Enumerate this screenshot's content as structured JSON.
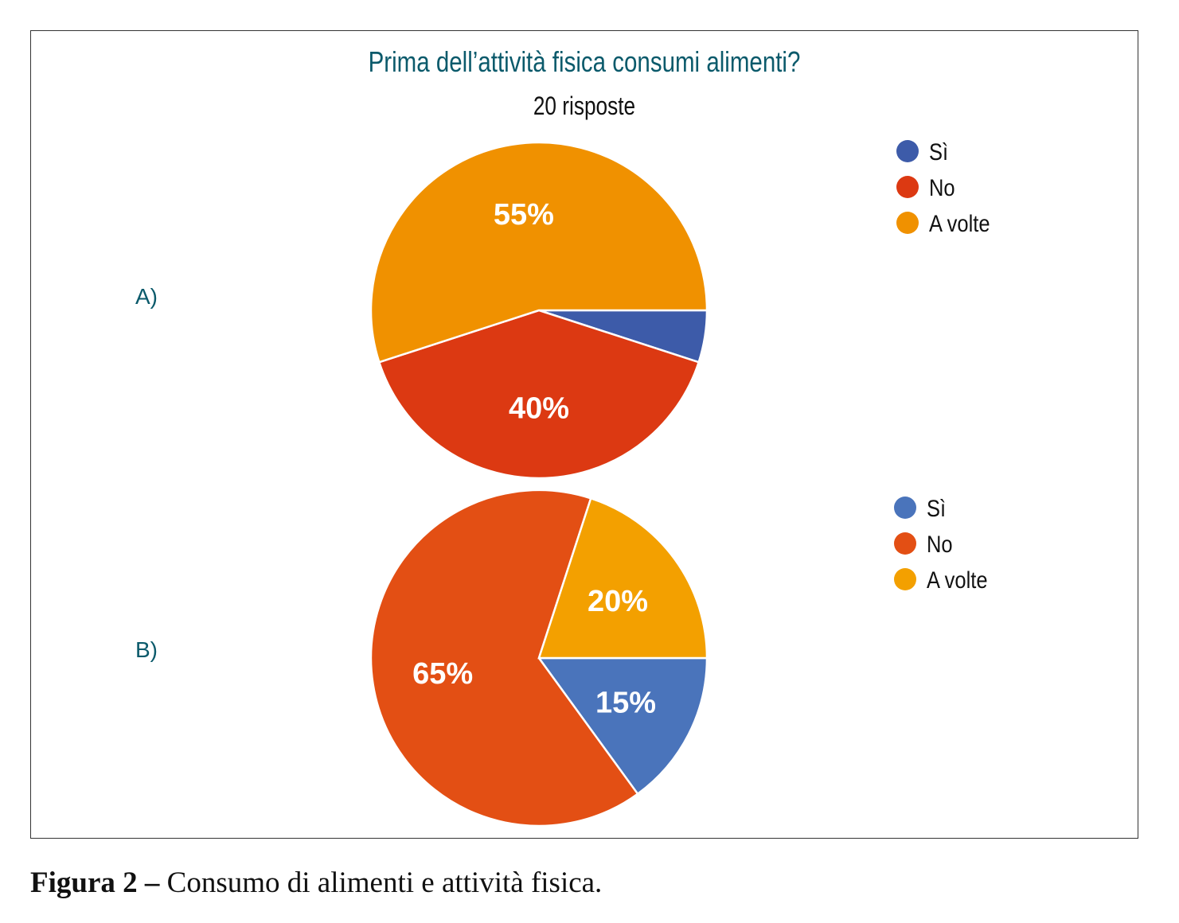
{
  "chart_data": [
    {
      "type": "pie",
      "title": "Prima dell’attività fisica consumi alimenti?",
      "subtitle": "20 risposte",
      "panel_label": "A)",
      "categories": [
        "Sì",
        "No",
        "A volte"
      ],
      "values": [
        5,
        40,
        55
      ],
      "data_labels": [
        "",
        "40%",
        "55%"
      ],
      "colors": [
        "#3d5ba9",
        "#dc3912",
        "#f09100"
      ],
      "start_angle": "3 o'clock, clockwise",
      "legend": "right"
    },
    {
      "type": "pie",
      "panel_label": "B)",
      "categories": [
        "Sì",
        "No",
        "A volte"
      ],
      "values": [
        15,
        65,
        20
      ],
      "data_labels": [
        "15%",
        "65%",
        "20%"
      ],
      "colors": [
        "#4a74bb",
        "#e34f14",
        "#f3a000"
      ],
      "start_angle": "3 o'clock, clockwise",
      "legend": "right"
    }
  ],
  "caption": {
    "bold": "Figura 2 –",
    "text": " Consumo di alimenti e attività fisica."
  },
  "title_color": "#0b5a6b"
}
